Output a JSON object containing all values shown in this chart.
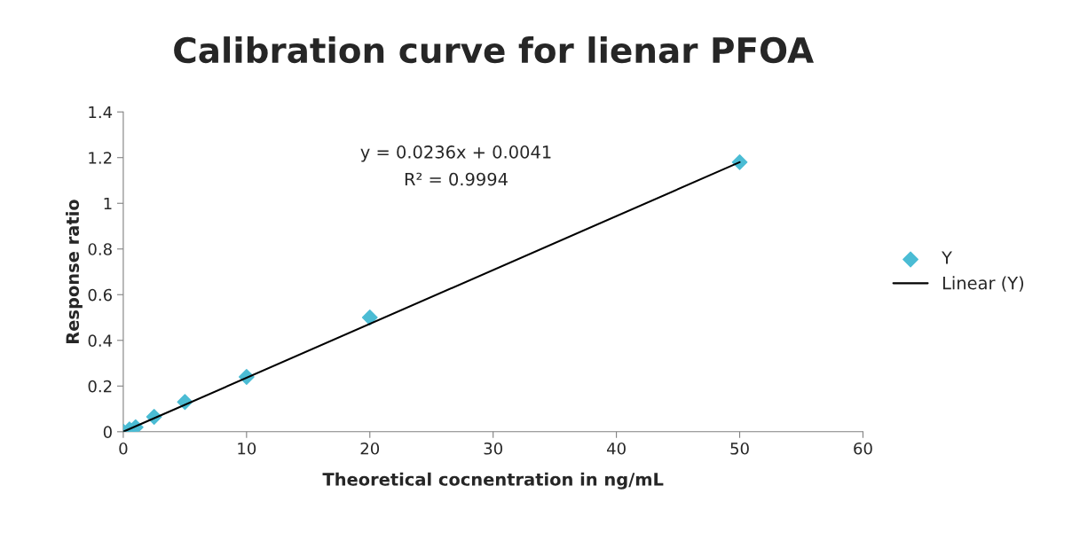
{
  "chart_data": {
    "type": "scatter",
    "title": "Calibration curve for lienar PFOA",
    "xlabel": "Theoretical cocnentration in ng/mL",
    "ylabel": "Response ratio",
    "annotations": [
      "y = 0.0236x + 0.0041",
      "R² = 0.9994"
    ],
    "series": [
      {
        "name": "Y",
        "color": "#4bbcd4",
        "marker": "diamond",
        "x": [
          0,
          0.5,
          1,
          2.5,
          5,
          10,
          20,
          50
        ],
        "values": [
          0,
          0.01,
          0.02,
          0.065,
          0.13,
          0.24,
          0.5,
          1.18
        ]
      },
      {
        "name": "Linear (Y)",
        "type": "line",
        "color": "#000000",
        "marker": "none",
        "line_style": "solid",
        "x": [
          0,
          50
        ],
        "values": [
          0,
          1.18
        ]
      }
    ],
    "xlim": [
      0,
      60
    ],
    "xticks": [
      0,
      10,
      20,
      30,
      40,
      50,
      60
    ],
    "ylim": [
      0,
      1.4
    ],
    "yticks": [
      0,
      0.2,
      0.4,
      0.6,
      0.8,
      1,
      1.2,
      1.4
    ],
    "grid": false,
    "legend": "right"
  }
}
